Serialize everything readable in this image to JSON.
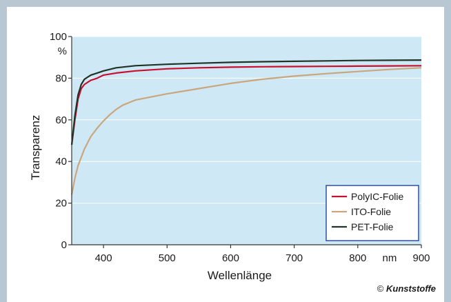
{
  "chart_data": {
    "type": "line",
    "xlabel": "Wellenlänge",
    "ylabel": "Transparenz",
    "xunit": "nm",
    "yunit": "%",
    "xlim": [
      350,
      900
    ],
    "ylim": [
      0,
      100
    ],
    "xticks": [
      400,
      500,
      600,
      700,
      800,
      900
    ],
    "yticks": [
      0,
      20,
      40,
      60,
      80,
      100
    ],
    "grid": "horizontal",
    "legend_position": "bottom-right",
    "series": [
      {
        "name": "PolyIC-Folie",
        "color": "#c8102e",
        "x": [
          350,
          355,
          360,
          365,
          370,
          380,
          390,
          400,
          420,
          450,
          500,
          550,
          600,
          650,
          700,
          750,
          800,
          850,
          900
        ],
        "y": [
          48,
          60,
          70,
          75,
          77,
          79,
          80,
          81.5,
          82.5,
          83.5,
          84.5,
          85,
          85.3,
          85.5,
          85.6,
          85.7,
          85.8,
          85.9,
          86
        ]
      },
      {
        "name": "ITO-Folie",
        "color": "#c9a67c",
        "x": [
          350,
          355,
          360,
          370,
          380,
          390,
          400,
          410,
          420,
          430,
          450,
          500,
          550,
          600,
          650,
          700,
          750,
          800,
          850,
          900
        ],
        "y": [
          24,
          32,
          38,
          46,
          52,
          56,
          59.5,
          62.5,
          65,
          67,
          69.5,
          72.5,
          75,
          77.5,
          79.5,
          81,
          82.2,
          83.2,
          84.2,
          85
        ]
      },
      {
        "name": "PET-Folie",
        "color": "#1f3326",
        "x": [
          350,
          355,
          360,
          365,
          370,
          380,
          390,
          400,
          420,
          450,
          500,
          550,
          600,
          650,
          700,
          750,
          800,
          850,
          900
        ],
        "y": [
          48,
          62,
          72,
          77,
          79.5,
          81.5,
          82.5,
          83.5,
          85,
          86,
          86.7,
          87.2,
          87.6,
          87.9,
          88.1,
          88.3,
          88.5,
          88.6,
          88.7
        ]
      }
    ]
  },
  "copyright": {
    "symbol": "©",
    "brand": "Kunststoffe"
  }
}
